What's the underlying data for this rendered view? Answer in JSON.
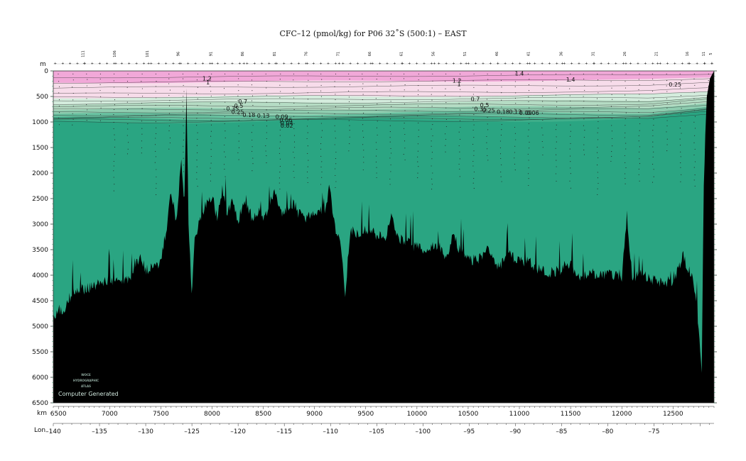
{
  "chart_data": {
    "type": "section",
    "title": "CFC–12 (pmol/kg) for P06 32˚S (500:1) – EAST",
    "depth_unit": "m",
    "distance_unit": "km",
    "lon_label": "Lon",
    "ylim": [
      0,
      6500
    ],
    "xlim_km": [
      6450,
      12900
    ],
    "lon_range": [
      -140,
      -68.5
    ],
    "depth_ticks": [
      0,
      500,
      1000,
      1500,
      2000,
      2500,
      3000,
      3500,
      4000,
      4500,
      5000,
      5500,
      6000,
      6500
    ],
    "depth_tick_labels": [
      "0",
      "500",
      "1000",
      "1500",
      "2000",
      "2500",
      "3000",
      "3500",
      "4000",
      "4500",
      "5000",
      "5500",
      "6000",
      "6500"
    ],
    "km_ticks": [
      6500,
      7000,
      7500,
      8000,
      8500,
      9000,
      9500,
      10000,
      10500,
      11000,
      11500,
      12000,
      12500
    ],
    "km_tick_labels": [
      "6500",
      "7000",
      "7500",
      "8000",
      "8500",
      "9000",
      "9500",
      "10000",
      "10500",
      "11000",
      "11500",
      "12000",
      "12500"
    ],
    "lon_ticks": [
      -140,
      -135,
      -130,
      -125,
      -120,
      -115,
      -110,
      -105,
      -100,
      -95,
      -90,
      -85,
      -80,
      -75
    ],
    "lon_tick_labels": [
      "–140",
      "–135",
      "–130",
      "–125",
      "–120",
      "–115",
      "–110",
      "–105",
      "–100",
      "–95",
      "–90",
      "–85",
      "–80",
      "–75"
    ],
    "contour_levels": [
      0.02,
      0.04,
      0.06,
      0.09,
      0.13,
      0.18,
      0.25,
      0.35,
      0.5,
      0.7,
      1.0,
      1.2,
      1.4
    ],
    "fill_colors": {
      "above_1_2": "#f1a8d8",
      "from_1_0": "#f7dcea",
      "from_0_7": "#d4ecdd",
      "from_0_35": "#b5dcc4",
      "from_0_18": "#8fcdb0",
      "from_0_09": "#66bf9e",
      "from_0_02": "#3fae8a",
      "below_0_02": "#2aa582",
      "bathymetry": "#000000"
    },
    "layer_base_depths_m": [
      230,
      520,
      640,
      760,
      860,
      940,
      1000
    ],
    "station_labels": [
      {
        "km": 6750,
        "text": "111"
      },
      {
        "km": 7060,
        "text": "106"
      },
      {
        "km": 7380,
        "text": "101"
      },
      {
        "km": 7680,
        "text": "96"
      },
      {
        "km": 8000,
        "text": "91"
      },
      {
        "km": 8310,
        "text": "86"
      },
      {
        "km": 8620,
        "text": "81"
      },
      {
        "km": 8930,
        "text": "76"
      },
      {
        "km": 9240,
        "text": "71"
      },
      {
        "km": 9550,
        "text": "66"
      },
      {
        "km": 9860,
        "text": "61"
      },
      {
        "km": 10170,
        "text": "56"
      },
      {
        "km": 10480,
        "text": "51"
      },
      {
        "km": 10790,
        "text": "46"
      },
      {
        "km": 11100,
        "text": "41"
      },
      {
        "km": 11420,
        "text": "36"
      },
      {
        "km": 11730,
        "text": "31"
      },
      {
        "km": 12040,
        "text": "26"
      },
      {
        "km": 12350,
        "text": "21"
      },
      {
        "km": 12650,
        "text": "16"
      },
      {
        "km": 12810,
        "text": "11"
      },
      {
        "km": 12880,
        "text": "5"
      }
    ],
    "contour_labels": [
      {
        "km": 11000,
        "depth": 90,
        "text": "1.4"
      },
      {
        "km": 11500,
        "depth": 205,
        "text": "1.4"
      },
      {
        "km": 7950,
        "depth": 190,
        "text": "1.2"
      },
      {
        "km": 7960,
        "depth": 265,
        "text": "1"
      },
      {
        "km": 10390,
        "depth": 230,
        "text": "1.2"
      },
      {
        "km": 10410,
        "depth": 300,
        "text": "1"
      },
      {
        "km": 12520,
        "depth": 305,
        "text": "0.25"
      },
      {
        "km": 8300,
        "depth": 640,
        "text": "0.7"
      },
      {
        "km": 10570,
        "depth": 590,
        "text": "0.7"
      },
      {
        "km": 8260,
        "depth": 720,
        "text": "0.5"
      },
      {
        "km": 10660,
        "depth": 710,
        "text": "0.5"
      },
      {
        "km": 8200,
        "depth": 780,
        "text": "0.35"
      },
      {
        "km": 10620,
        "depth": 785,
        "text": "0.35"
      },
      {
        "km": 8250,
        "depth": 840,
        "text": "0.25"
      },
      {
        "km": 10700,
        "depth": 810,
        "text": "0.25"
      },
      {
        "km": 8360,
        "depth": 900,
        "text": "0.18"
      },
      {
        "km": 10840,
        "depth": 840,
        "text": "0.18"
      },
      {
        "km": 8500,
        "depth": 920,
        "text": "0.13"
      },
      {
        "km": 10960,
        "depth": 840,
        "text": "0.13"
      },
      {
        "km": 8680,
        "depth": 940,
        "text": "0.09"
      },
      {
        "km": 11060,
        "depth": 860,
        "text": "0.09"
      },
      {
        "km": 8720,
        "depth": 1000,
        "text": "0.06"
      },
      {
        "km": 11130,
        "depth": 860,
        "text": "0.06"
      },
      {
        "km": 8730,
        "depth": 1060,
        "text": "0.04"
      },
      {
        "km": 8730,
        "depth": 1110,
        "text": "0.02"
      }
    ]
  },
  "logo": {
    "line1": "WOCE",
    "line2": "HYDROGRAPHIC",
    "line3": "ATLAS"
  },
  "credit": "Computer Generated"
}
